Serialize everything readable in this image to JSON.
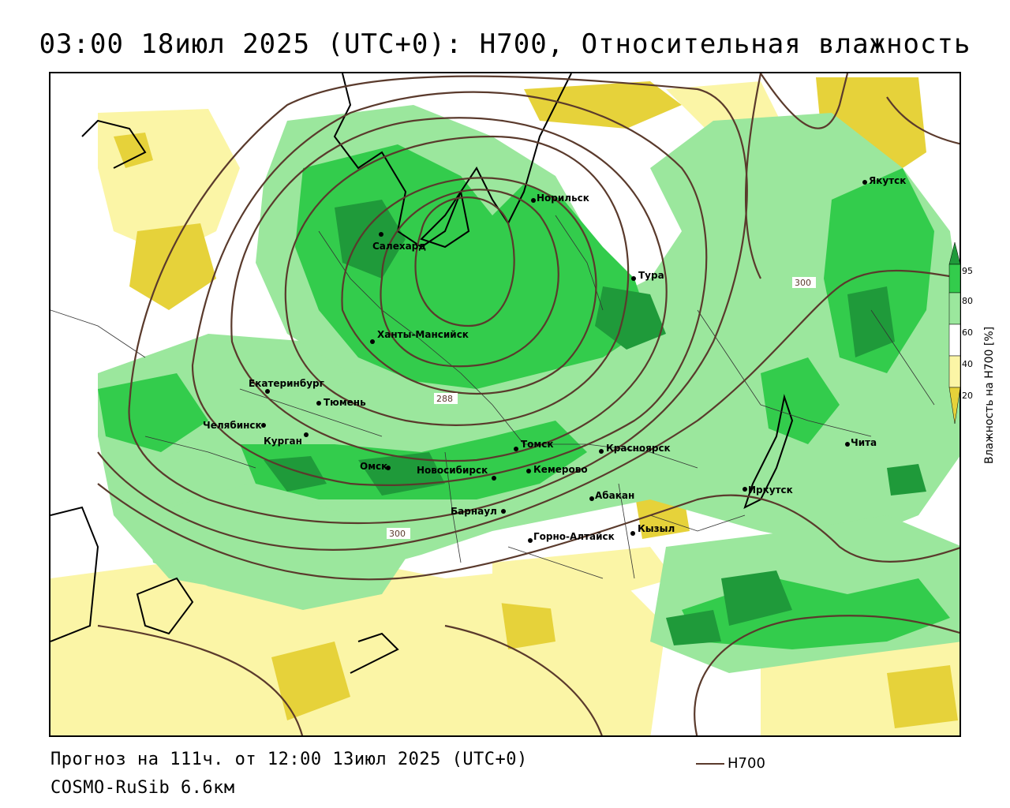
{
  "title": "03:00 18июл 2025 (UTC+0): H700, Относительная влажность",
  "footer": {
    "forecast": "Прогноз на 111ч. от 12:00 13июл 2025 (UTC+0)",
    "model": "COSMO-RuSib 6.6км",
    "legend_label": "H700"
  },
  "colorbar": {
    "title": "Влажность на H700 [%]",
    "ticks": [
      "95",
      "80",
      "60",
      "40",
      "20"
    ],
    "colors": [
      "#1f9a3a",
      "#33cc4c",
      "#9be79d",
      "#ffffff",
      "#fbf5a6",
      "#e6d23a"
    ]
  },
  "isolines": {
    "label_288": "288",
    "label_300a": "300",
    "label_300b": "300",
    "color": "#5a3a2c"
  },
  "cities": [
    {
      "name": "Салехард"
    },
    {
      "name": "Норильск"
    },
    {
      "name": "Якутск"
    },
    {
      "name": "Тура"
    },
    {
      "name": "Ханты-Мансийск"
    },
    {
      "name": "Екатеринбург"
    },
    {
      "name": "Тюмень"
    },
    {
      "name": "Челябинск"
    },
    {
      "name": "Курган"
    },
    {
      "name": "Омск"
    },
    {
      "name": "Новосибирск"
    },
    {
      "name": "Томск"
    },
    {
      "name": "Кемерово"
    },
    {
      "name": "Красноярск"
    },
    {
      "name": "Абакан"
    },
    {
      "name": "Барнаул"
    },
    {
      "name": "Горно-Алтайск"
    },
    {
      "name": "Кызыл"
    },
    {
      "name": "Иркутск"
    },
    {
      "name": "Чита"
    }
  ]
}
